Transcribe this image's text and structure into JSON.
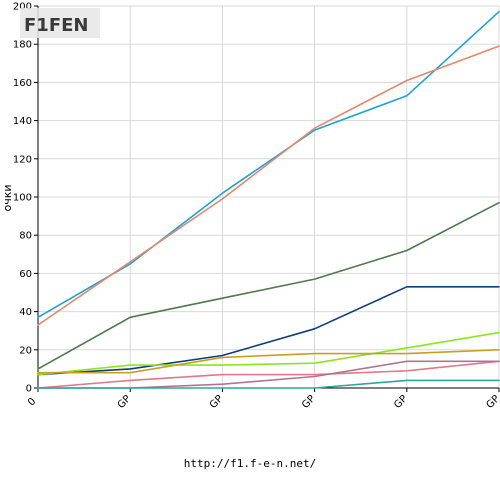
{
  "footer": {
    "url": "http://f1.f-e-n.net/"
  },
  "logo": {
    "text": "F1FEN",
    "accent": "#f7941d",
    "dark": "#3a3a3a"
  },
  "chart_data": {
    "type": "line",
    "ylabel": "очки",
    "xlabel": "",
    "ylim": [
      0,
      200
    ],
    "yticks": [
      0,
      20,
      40,
      60,
      80,
      100,
      120,
      140,
      160,
      180,
      200
    ],
    "x_tick_labels": [
      "0",
      "GP",
      "GP",
      "GP",
      "GP",
      "GP"
    ],
    "x": [
      0,
      1,
      2,
      3,
      4,
      5
    ],
    "grid": true,
    "series": [
      {
        "color": "#1aa3d9",
        "values": [
          37,
          65,
          102,
          135,
          153,
          197
        ]
      },
      {
        "color": "#e8866a",
        "values": [
          33,
          66,
          99,
          136,
          161,
          179
        ]
      },
      {
        "color": "#4f7a4b",
        "values": [
          10,
          37,
          47,
          57,
          72,
          97
        ]
      },
      {
        "color": "#0f3d7a",
        "values": [
          7,
          10,
          17,
          31,
          53,
          53
        ]
      },
      {
        "color": "#8ce61f",
        "values": [
          7,
          12,
          12,
          13,
          21,
          29
        ]
      },
      {
        "color": "#c8a020",
        "values": [
          8,
          8,
          16,
          18,
          18,
          20
        ]
      },
      {
        "color": "#e07a8a",
        "values": [
          0,
          4,
          7,
          7,
          9,
          14
        ]
      },
      {
        "color": "#b0748f",
        "values": [
          0,
          0,
          2,
          6,
          14,
          14
        ]
      },
      {
        "color": "#2aa8a0",
        "values": [
          0,
          0,
          0,
          0,
          4,
          4
        ]
      }
    ]
  }
}
